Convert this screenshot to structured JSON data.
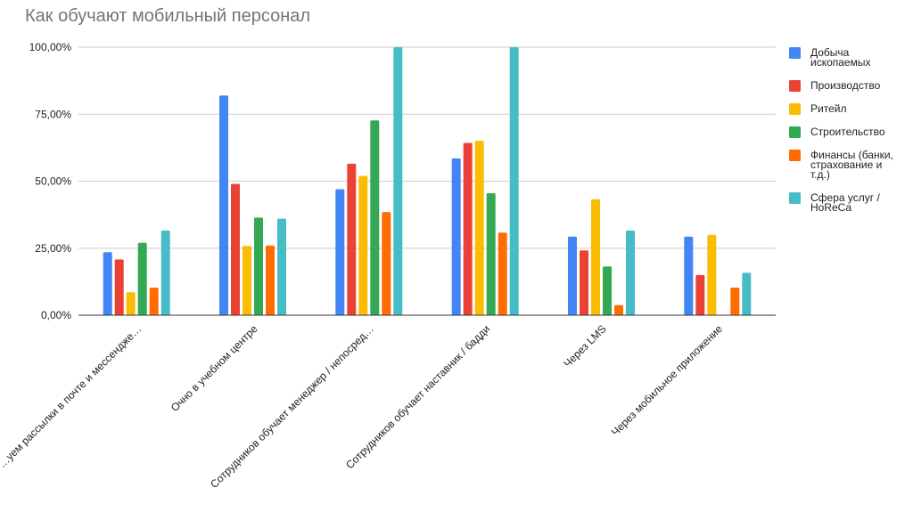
{
  "chart_data": {
    "type": "bar",
    "title": "Как обучают мобильный персонал",
    "xlabel": "",
    "ylabel": "",
    "ylim": [
      0,
      100
    ],
    "yticks": [
      0,
      25,
      50,
      75,
      100
    ],
    "ytick_labels": [
      "0,00%",
      "25,00%",
      "50,00%",
      "75,00%",
      "100,00%"
    ],
    "grid": true,
    "legend_position": "right",
    "categories": [
      "…уем рассылки в почте и мессендже…",
      "Очно в учебном центре",
      "Сотрудников обучает менеджер / непосред…",
      "Сотрудников обучает наставник / бадди",
      "Через LMS",
      "Через мобильное приложение"
    ],
    "series": [
      {
        "name": "Добыча ископаемых",
        "legend_lines": [
          "Добыча",
          "ископаемых"
        ],
        "color": "#4285f4",
        "values": [
          23.5,
          82,
          47,
          58.5,
          29.3,
          29.3
        ]
      },
      {
        "name": "Производство",
        "legend_lines": [
          "Производство"
        ],
        "color": "#ea4335",
        "values": [
          20.8,
          49,
          56.5,
          64.3,
          24.2,
          15
        ]
      },
      {
        "name": "Ритейл",
        "legend_lines": [
          "Ритейл"
        ],
        "color": "#fbbc04",
        "values": [
          8.6,
          25.8,
          52,
          65,
          43.3,
          30
        ]
      },
      {
        "name": "Строительство",
        "legend_lines": [
          "Строительство"
        ],
        "color": "#34a853",
        "values": [
          27,
          36.4,
          72.7,
          45.5,
          18.2,
          0
        ]
      },
      {
        "name": "Финансы (банки, страхование и т.д.)",
        "legend_lines": [
          "Финансы (банки,",
          "страхование  и",
          "т.д.)"
        ],
        "color": "#ff6d01",
        "values": [
          10.3,
          26,
          38.5,
          30.8,
          3.8,
          10.3
        ]
      },
      {
        "name": "Сфера услуг / HoReCa",
        "legend_lines": [
          "Сфера услуг /",
          "HoReCa"
        ],
        "color": "#46bdc6",
        "values": [
          31.6,
          36,
          100,
          100,
          31.6,
          15.8
        ]
      }
    ]
  }
}
